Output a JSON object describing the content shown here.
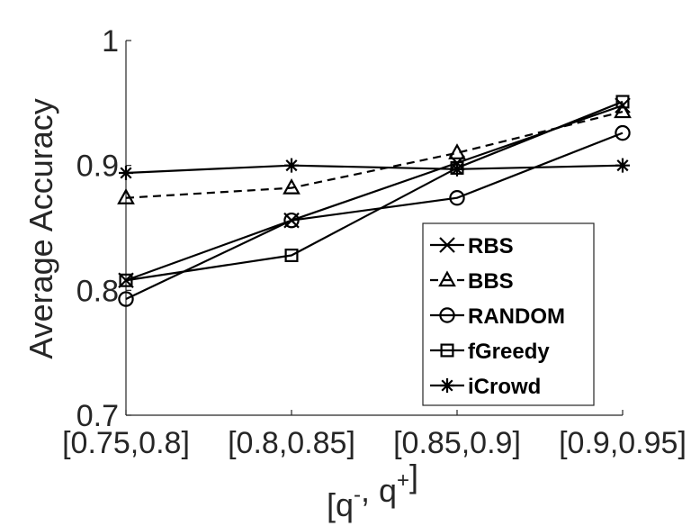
{
  "chart_data": {
    "type": "line",
    "title": "",
    "xlabel": "[q⁻, q⁺]",
    "ylabel": "Average Accuracy",
    "categories": [
      "[0.75,0.8]",
      "[0.8,0.85]",
      "[0.85,0.9]",
      "[0.9,0.95]"
    ],
    "ylim": [
      0.7,
      1.0
    ],
    "yticks": [
      0.7,
      0.8,
      0.9,
      1.0
    ],
    "ytick_labels": [
      "0.7",
      "0.8",
      "0.9",
      "1"
    ],
    "grid": false,
    "legend_position": "lower-right",
    "series": [
      {
        "name": "RBS",
        "marker": "x",
        "dash": "solid",
        "values": [
          0.808,
          0.856,
          0.902,
          0.948
        ]
      },
      {
        "name": "BBS",
        "marker": "triangle",
        "dash": "dashed",
        "values": [
          0.874,
          0.882,
          0.91,
          0.943
        ]
      },
      {
        "name": "RANDOM",
        "marker": "circle",
        "dash": "solid",
        "values": [
          0.793,
          0.856,
          0.874,
          0.926
        ]
      },
      {
        "name": "fGreedy",
        "marker": "square",
        "dash": "solid",
        "values": [
          0.808,
          0.828,
          0.898,
          0.951
        ]
      },
      {
        "name": "iCrowd",
        "marker": "star",
        "dash": "solid",
        "values": [
          0.894,
          0.9,
          0.897,
          0.9
        ]
      }
    ]
  }
}
